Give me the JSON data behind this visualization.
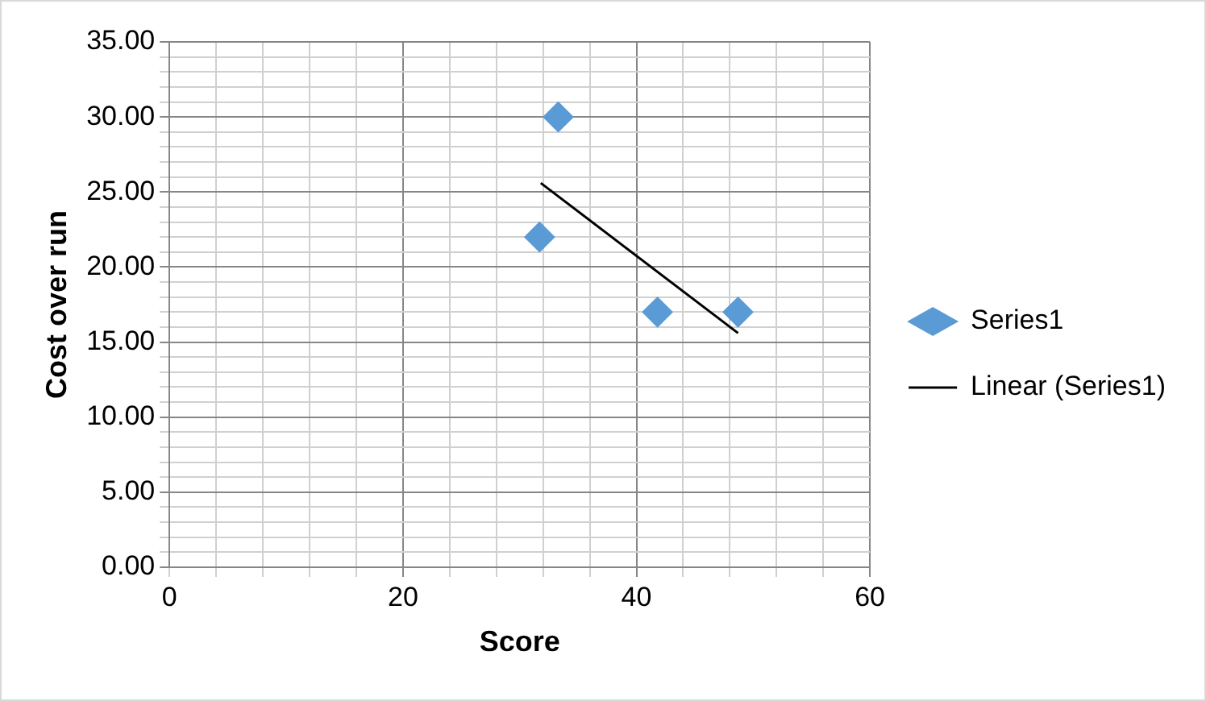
{
  "chart_data": {
    "type": "scatter",
    "xlabel": "Score",
    "ylabel": "Cost over run",
    "series": [
      {
        "name": "Series1",
        "color": "#5b9bd5",
        "x": [
          31.7,
          33.3,
          41.8,
          48.7
        ],
        "values": [
          22,
          30,
          17,
          17
        ],
        "marker": "diamond"
      },
      {
        "name": "Linear (Series1)",
        "type": "line",
        "color": "#000000",
        "x": [
          31.8,
          48.7
        ],
        "values": [
          25.6,
          15.6
        ],
        "marker": "none",
        "line_style": "solid"
      }
    ],
    "xlim": [
      0,
      60
    ],
    "xticks": [
      0,
      {
        "value": 4,
        "label": null
      },
      {
        "value": 8,
        "label": null
      },
      {
        "value": 12,
        "label": null
      },
      {
        "value": 16,
        "label": null
      },
      20,
      {
        "value": 24,
        "label": null
      },
      {
        "value": 28,
        "label": null
      },
      {
        "value": 32,
        "label": null
      },
      {
        "value": 36,
        "label": null
      },
      40,
      {
        "value": 44,
        "label": null
      },
      {
        "value": 48,
        "label": null
      },
      {
        "value": 52,
        "label": null
      },
      {
        "value": 56,
        "label": null
      },
      60
    ],
    "ylim": [
      0,
      35
    ],
    "yticks": [
      {
        "value": 0,
        "label": "0.00"
      },
      {
        "value": 1,
        "label": null
      },
      {
        "value": 2,
        "label": null
      },
      {
        "value": 3,
        "label": null
      },
      {
        "value": 4,
        "label": null
      },
      {
        "value": 5,
        "label": "5.00"
      },
      {
        "value": 6,
        "label": null
      },
      {
        "value": 7,
        "label": null
      },
      {
        "value": 8,
        "label": null
      },
      {
        "value": 9,
        "label": null
      },
      {
        "value": 10,
        "label": "10.00"
      },
      {
        "value": 11,
        "label": null
      },
      {
        "value": 12,
        "label": null
      },
      {
        "value": 13,
        "label": null
      },
      {
        "value": 14,
        "label": null
      },
      {
        "value": 15,
        "label": "15.00"
      },
      {
        "value": 16,
        "label": null
      },
      {
        "value": 17,
        "label": null
      },
      {
        "value": 18,
        "label": null
      },
      {
        "value": 19,
        "label": null
      },
      {
        "value": 20,
        "label": "20.00"
      },
      {
        "value": 21,
        "label": null
      },
      {
        "value": 22,
        "label": null
      },
      {
        "value": 23,
        "label": null
      },
      {
        "value": 24,
        "label": null
      },
      {
        "value": 25,
        "label": "25.00"
      },
      {
        "value": 26,
        "label": null
      },
      {
        "value": 27,
        "label": null
      },
      {
        "value": 28,
        "label": null
      },
      {
        "value": 29,
        "label": null
      },
      {
        "value": 30,
        "label": "30.00"
      },
      {
        "value": 31,
        "label": null
      },
      {
        "value": 32,
        "label": null
      },
      {
        "value": 33,
        "label": null
      },
      {
        "value": 34,
        "label": null
      },
      {
        "value": 35,
        "label": "35.00"
      }
    ],
    "grid": true,
    "legend": "right"
  }
}
